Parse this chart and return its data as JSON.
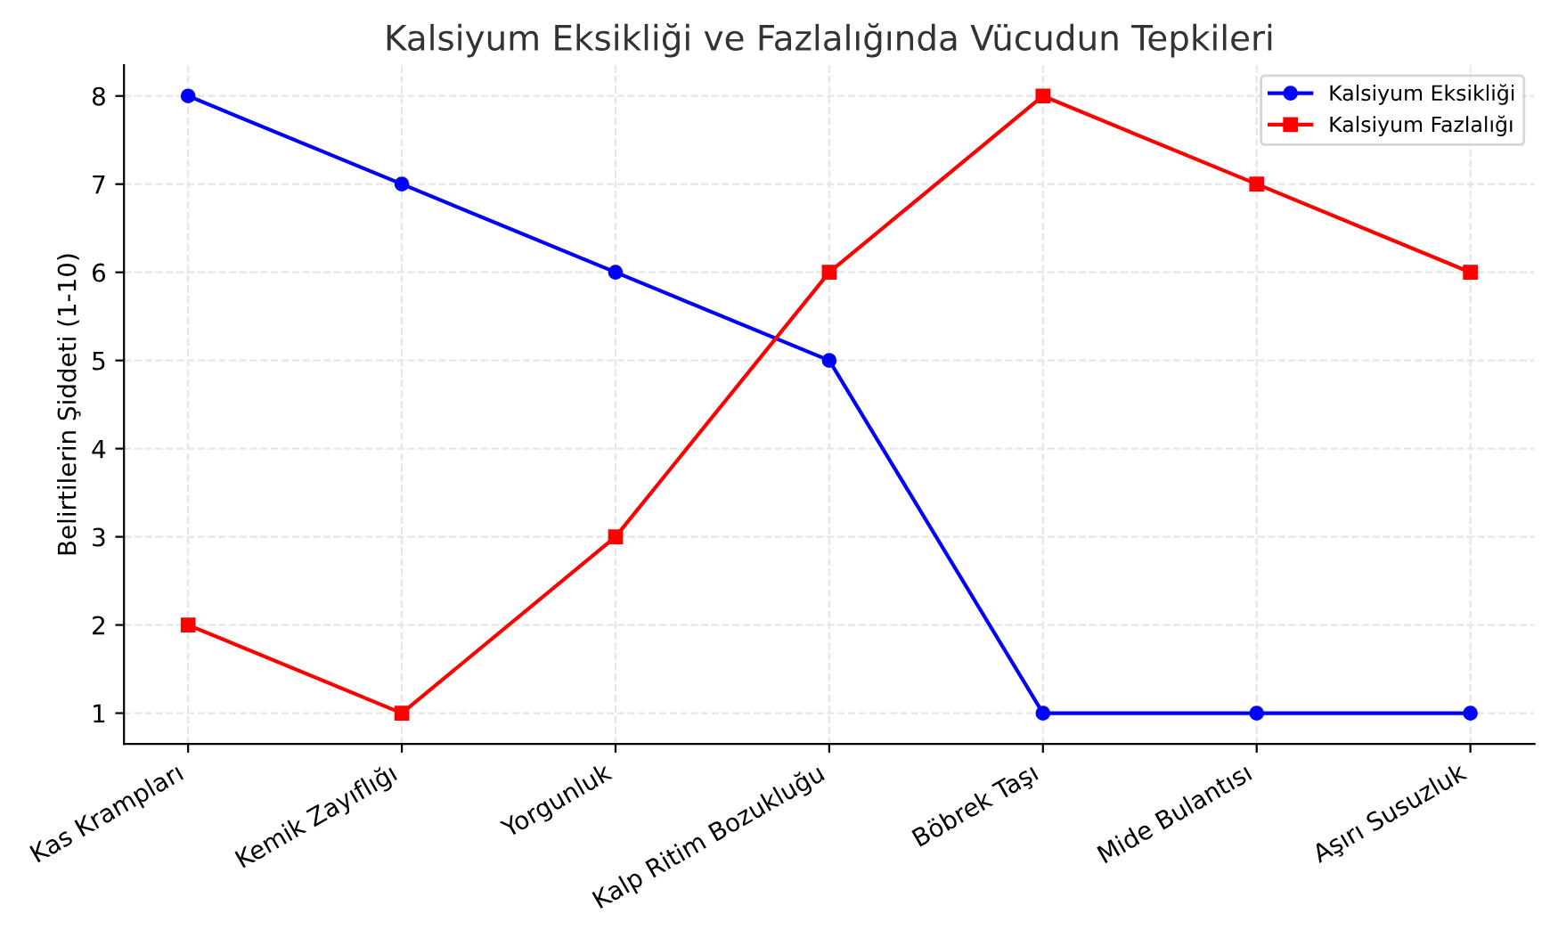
{
  "chart_data": {
    "type": "line",
    "title": "Kalsiyum Eksikliği ve Fazlalığında Vücudun Tepkileri",
    "ylabel": "Belirtilerin Şiddeti (1-10)",
    "categories": [
      "Kas Krampları",
      "Kemik Zayıflığı",
      "Yorgunluk",
      "Kalp Ritim Bozukluğu",
      "Böbrek Taşı",
      "Mide Bulantısı",
      "Aşırı Susuzluk"
    ],
    "series": [
      {
        "name": "Kalsiyum Eksikliği",
        "color": "#0000ff",
        "marker": "circle",
        "values": [
          8,
          7,
          6,
          5,
          1,
          1,
          1
        ]
      },
      {
        "name": "Kalsiyum Fazlalığı",
        "color": "#ff0000",
        "marker": "square",
        "values": [
          2,
          1,
          3,
          6,
          8,
          7,
          6
        ]
      }
    ],
    "ylim": [
      0.65,
      8.35
    ],
    "yticks": [
      1,
      2,
      3,
      4,
      5,
      6,
      7,
      8
    ],
    "grid": true,
    "legend": "top right",
    "line_style": "solid"
  }
}
